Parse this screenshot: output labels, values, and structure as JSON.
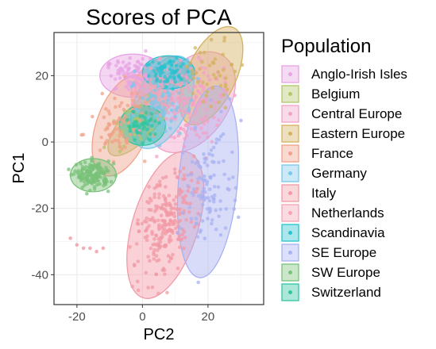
{
  "chart_data": {
    "type": "scatter",
    "title": "Scores of PCA",
    "xlabel": "PC2",
    "ylabel": "PC1",
    "xlim": [
      -27,
      37
    ],
    "ylim": [
      -49,
      33
    ],
    "xticks": [
      -20,
      0,
      20
    ],
    "yticks": [
      -40,
      -20,
      0,
      20
    ],
    "grid": true,
    "ellipses": true,
    "legend": {
      "title": "Population",
      "placement": "right"
    },
    "series": [
      {
        "name": "Anglo-Irish Isles",
        "color": "#E7A3E3",
        "center": [
          -3,
          20
        ],
        "ellipse": {
          "rx": 10,
          "ry": 6.5,
          "angle": 0
        },
        "n": 90,
        "spread": [
          4,
          2.5
        ]
      },
      {
        "name": "Belgium",
        "color": "#B3C66B",
        "center": [
          -1,
          6
        ],
        "ellipse": {
          "rx": 13,
          "ry": 5,
          "angle": 48
        },
        "n": 40,
        "spread": [
          5,
          3
        ]
      },
      {
        "name": "Central Europe",
        "color": "#F1A2C9",
        "center": [
          15,
          12
        ],
        "ellipse": {
          "rx": 17,
          "ry": 11,
          "angle": 55
        },
        "n": 150,
        "spread": [
          6,
          5
        ]
      },
      {
        "name": "Eastern Europe",
        "color": "#D4B15F",
        "center": [
          21,
          20
        ],
        "ellipse": {
          "rx": 16,
          "ry": 7.5,
          "angle": 65
        },
        "n": 45,
        "spread": [
          5,
          4
        ]
      },
      {
        "name": "France",
        "color": "#F0A18A",
        "center": [
          -6,
          5
        ],
        "ellipse": {
          "rx": 16,
          "ry": 8,
          "angle": 70
        },
        "n": 90,
        "spread": [
          4,
          6
        ]
      },
      {
        "name": "Germany",
        "color": "#7CC7EB",
        "center": [
          6,
          12
        ],
        "ellipse": {
          "rx": 15,
          "ry": 8,
          "angle": 65
        },
        "n": 100,
        "spread": [
          4,
          5
        ]
      },
      {
        "name": "Italy",
        "color": "#F29AA6",
        "center": [
          7,
          -25
        ],
        "ellipse": {
          "rx": 23,
          "ry": 10,
          "angle": 73
        },
        "n": 240,
        "spread": [
          4,
          8
        ]
      },
      {
        "name": "Netherlands",
        "color": "#F3A4B5",
        "center": [
          5,
          17
        ],
        "ellipse": {
          "rx": 10,
          "ry": 7,
          "angle": 48
        },
        "n": 60,
        "spread": [
          4,
          3
        ]
      },
      {
        "name": "Scandinavia",
        "color": "#27C3CF",
        "center": [
          8,
          21
        ],
        "ellipse": {
          "rx": 8,
          "ry": 5,
          "angle": 0
        },
        "n": 60,
        "spread": [
          3.5,
          2.5
        ]
      },
      {
        "name": "SE Europe",
        "color": "#A8B2F2",
        "center": [
          20,
          -12
        ],
        "ellipse": {
          "rx": 29,
          "ry": 9,
          "angle": 85
        },
        "n": 110,
        "spread": [
          4,
          9
        ]
      },
      {
        "name": "SW Europe",
        "color": "#7AC279",
        "center": [
          -15,
          -10
        ],
        "ellipse": {
          "rx": 7,
          "ry": 5,
          "angle": 0
        },
        "n": 160,
        "spread": [
          2.5,
          2
        ]
      },
      {
        "name": "Switzerland",
        "color": "#2FC6A2",
        "center": [
          0,
          5
        ],
        "ellipse": {
          "rx": 7,
          "ry": 6,
          "angle": 0
        },
        "n": 45,
        "spread": [
          2.5,
          2.2
        ]
      }
    ],
    "extra_points": [
      {
        "series": "Italy",
        "points": [
          [
            -22,
            -29
          ],
          [
            -20,
            -31
          ],
          [
            -18,
            -32
          ],
          [
            -16,
            -32
          ],
          [
            -14,
            -33
          ],
          [
            -12,
            -32
          ]
        ]
      }
    ]
  }
}
